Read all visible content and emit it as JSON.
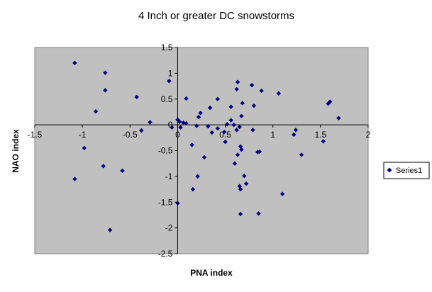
{
  "chart_data": {
    "type": "scatter",
    "title": "4 Inch or greater  DC snowstorms",
    "xlabel": "PNA index",
    "ylabel": "NAO index",
    "xlim": [
      -1.5,
      2
    ],
    "ylim": [
      -2.5,
      1.5
    ],
    "xticks": [
      "-1.5",
      "-1",
      "-0.5",
      "0",
      "0.5",
      "1",
      "1.5",
      "2"
    ],
    "yticks": [
      "-2.5",
      "-2",
      "-1.5",
      "-1",
      "-0.5",
      "0",
      "0.5",
      "1",
      "1.5"
    ],
    "grid": false,
    "plot_background": "#c0c0c0",
    "marker_color": "#000080",
    "legend_position": "right",
    "series": [
      {
        "name": "Series1",
        "points": [
          [
            -1.08,
            1.2
          ],
          [
            -0.76,
            1.01
          ],
          [
            -0.76,
            0.67
          ],
          [
            -0.86,
            0.26
          ],
          [
            -0.43,
            0.54
          ],
          [
            -0.38,
            -0.11
          ],
          [
            -0.29,
            0.05
          ],
          [
            -0.98,
            -0.45
          ],
          [
            -1.08,
            -1.05
          ],
          [
            -0.78,
            -0.8
          ],
          [
            -0.58,
            -0.89
          ],
          [
            -0.71,
            -2.04
          ],
          [
            -0.09,
            0.85
          ],
          [
            -0.06,
            -0.05
          ],
          [
            0.0,
            0.1
          ],
          [
            0.02,
            0.06
          ],
          [
            0.06,
            0.04
          ],
          [
            0.09,
            0.03
          ],
          [
            0.03,
            -0.05
          ],
          [
            0.09,
            0.51
          ],
          [
            0.15,
            -0.39
          ],
          [
            0.2,
            -0.02
          ],
          [
            0.22,
            0.15
          ],
          [
            0.24,
            0.23
          ],
          [
            0.32,
            -0.03
          ],
          [
            0.36,
            -0.15
          ],
          [
            0.34,
            0.33
          ],
          [
            0.28,
            -0.63
          ],
          [
            0.21,
            -1.0
          ],
          [
            0.16,
            -1.25
          ],
          [
            0.0,
            -1.52
          ],
          [
            0.42,
            0.5
          ],
          [
            0.42,
            -0.07
          ],
          [
            0.49,
            -0.14
          ],
          [
            0.5,
            -0.33
          ],
          [
            0.52,
            0.01
          ],
          [
            0.56,
            0.09
          ],
          [
            0.56,
            0.35
          ],
          [
            0.59,
            0.0
          ],
          [
            0.62,
            0.69
          ],
          [
            0.63,
            0.83
          ],
          [
            0.6,
            -0.75
          ],
          [
            0.65,
            -0.04
          ],
          [
            0.62,
            -0.1
          ],
          [
            0.63,
            -0.58
          ],
          [
            0.66,
            -0.42
          ],
          [
            0.67,
            -0.48
          ],
          [
            0.67,
            0.17
          ],
          [
            0.68,
            0.42
          ],
          [
            0.7,
            -0.99
          ],
          [
            0.72,
            -1.14
          ],
          [
            0.65,
            -1.19
          ],
          [
            0.66,
            -1.25
          ],
          [
            0.66,
            -1.73
          ],
          [
            0.78,
            0.77
          ],
          [
            0.79,
            -0.1
          ],
          [
            0.8,
            0.37
          ],
          [
            0.84,
            -0.53
          ],
          [
            0.86,
            -0.52
          ],
          [
            0.88,
            0.66
          ],
          [
            0.85,
            -1.72
          ],
          [
            1.06,
            0.61
          ],
          [
            1.1,
            -1.34
          ],
          [
            1.22,
            -0.19
          ],
          [
            1.24,
            -0.1
          ],
          [
            1.3,
            -0.58
          ],
          [
            1.53,
            -0.32
          ],
          [
            1.58,
            0.41
          ],
          [
            1.6,
            0.45
          ],
          [
            1.69,
            0.13
          ]
        ]
      }
    ]
  }
}
